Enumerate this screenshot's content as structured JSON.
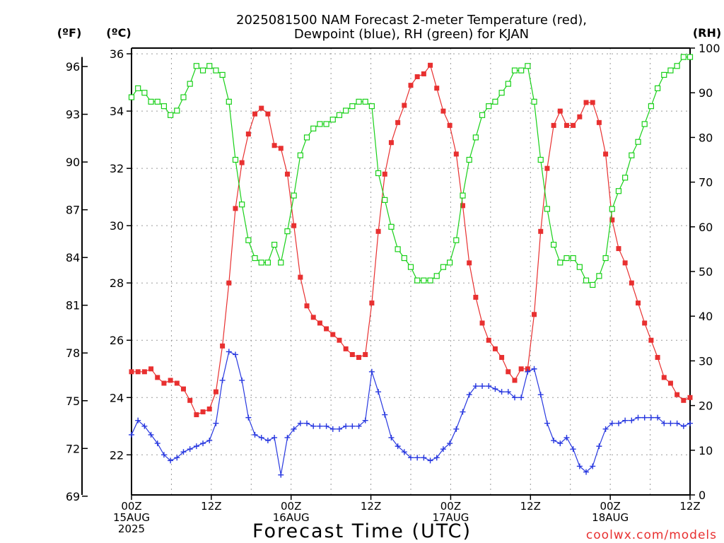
{
  "chart_data": {
    "type": "line",
    "title": {
      "line1": "2025081500 NAM Forecast 2-meter Temperature (red),",
      "line2": "Dewpoint (blue), RH (green) for KJAN"
    },
    "xlabel": "Forecast Time (UTC)",
    "watermark": "coolwx.com/models",
    "units": {
      "f": "(ºF)",
      "c": "(ºC)",
      "rh": "(RH)"
    },
    "x_ticks": [
      {
        "h": 0,
        "lines": [
          "00Z",
          "15AUG",
          "2025"
        ]
      },
      {
        "h": 12,
        "lines": [
          "12Z"
        ]
      },
      {
        "h": 24,
        "lines": [
          "00Z",
          "16AUG"
        ]
      },
      {
        "h": 36,
        "lines": [
          "12Z"
        ]
      },
      {
        "h": 48,
        "lines": [
          "00Z",
          "17AUG"
        ]
      },
      {
        "h": 60,
        "lines": [
          "12Z"
        ]
      },
      {
        "h": 72,
        "lines": [
          "00Z",
          "18AUG"
        ]
      },
      {
        "h": 84,
        "lines": [
          "12Z"
        ]
      }
    ],
    "xlim": [
      0,
      84
    ],
    "c_ticks": [
      "22",
      "24",
      "26",
      "28",
      "30",
      "32",
      "34",
      "36"
    ],
    "c_lim": [
      20.6,
      36.2
    ],
    "f_ticks": [
      "69",
      "72",
      "75",
      "78",
      "81",
      "84",
      "87",
      "90",
      "93",
      "96"
    ],
    "rh_ticks": [
      "0",
      "10",
      "20",
      "30",
      "40",
      "50",
      "60",
      "70",
      "80",
      "90",
      "100"
    ],
    "rh_lim": [
      0,
      100
    ],
    "grid": true,
    "colors": {
      "temp": "#e83030",
      "dew": "#2838e0",
      "rh": "#18d018"
    },
    "series": [
      {
        "name": "Temperature",
        "axis": "c",
        "marker": "filled-square",
        "values": [
          24.9,
          24.9,
          24.9,
          25.0,
          24.7,
          24.5,
          24.6,
          24.5,
          24.3,
          23.9,
          23.4,
          23.5,
          23.6,
          24.2,
          25.8,
          28.0,
          30.6,
          32.2,
          33.2,
          33.9,
          34.1,
          33.9,
          32.8,
          32.7,
          31.8,
          30.0,
          28.2,
          27.2,
          26.8,
          26.6,
          26.4,
          26.2,
          26.0,
          25.7,
          25.5,
          25.4,
          25.5,
          27.3,
          29.8,
          31.8,
          32.9,
          33.6,
          34.2,
          34.9,
          35.2,
          35.3,
          35.6,
          34.8,
          34.0,
          33.5,
          32.5,
          30.7,
          28.7,
          27.5,
          26.6,
          26.0,
          25.7,
          25.4,
          24.9,
          24.6,
          25.0,
          25.0,
          26.9,
          29.8,
          32.0,
          33.5,
          34.0,
          33.5,
          33.5,
          33.8,
          34.3,
          34.3,
          33.6,
          32.5,
          30.2,
          29.2,
          28.7,
          28.0,
          27.3,
          26.6,
          26.0,
          25.4,
          24.7,
          24.5,
          24.1,
          23.9,
          24.0
        ]
      },
      {
        "name": "Dewpoint",
        "axis": "c",
        "marker": "plus",
        "values": [
          22.7,
          23.2,
          23.0,
          22.7,
          22.4,
          22.0,
          21.8,
          21.9,
          22.1,
          22.2,
          22.3,
          22.4,
          22.5,
          23.1,
          24.6,
          25.6,
          25.5,
          24.6,
          23.3,
          22.7,
          22.6,
          22.5,
          22.6,
          21.3,
          22.6,
          22.9,
          23.1,
          23.1,
          23.0,
          23.0,
          23.0,
          22.9,
          22.9,
          23.0,
          23.0,
          23.0,
          23.2,
          24.9,
          24.2,
          23.4,
          22.6,
          22.3,
          22.1,
          21.9,
          21.9,
          21.9,
          21.8,
          21.9,
          22.2,
          22.4,
          22.9,
          23.5,
          24.1,
          24.4,
          24.4,
          24.4,
          24.3,
          24.2,
          24.2,
          24.0,
          24.0,
          24.9,
          25.0,
          24.1,
          23.1,
          22.5,
          22.4,
          22.6,
          22.2,
          21.6,
          21.4,
          21.6,
          22.3,
          22.9,
          23.1,
          23.1,
          23.2,
          23.2,
          23.3,
          23.3,
          23.3,
          23.3,
          23.1,
          23.1,
          23.1,
          23.0,
          23.1
        ]
      },
      {
        "name": "RH",
        "axis": "rh",
        "marker": "open-square",
        "values": [
          89,
          91,
          90,
          88,
          88,
          87,
          85,
          86,
          89,
          92,
          96,
          95,
          96,
          95,
          94,
          88,
          75,
          65,
          57,
          53,
          52,
          52,
          56,
          52,
          59,
          67,
          76,
          80,
          82,
          83,
          83,
          84,
          85,
          86,
          87,
          88,
          88,
          87,
          72,
          66,
          60,
          55,
          53,
          51,
          48,
          48,
          48,
          49,
          51,
          52,
          57,
          67,
          75,
          80,
          85,
          87,
          88,
          90,
          92,
          95,
          95,
          96,
          88,
          75,
          64,
          56,
          52,
          53,
          53,
          51,
          48,
          47,
          49,
          53,
          64,
          68,
          71,
          76,
          79,
          83,
          87,
          91,
          94,
          95,
          96,
          98,
          98
        ]
      }
    ]
  }
}
